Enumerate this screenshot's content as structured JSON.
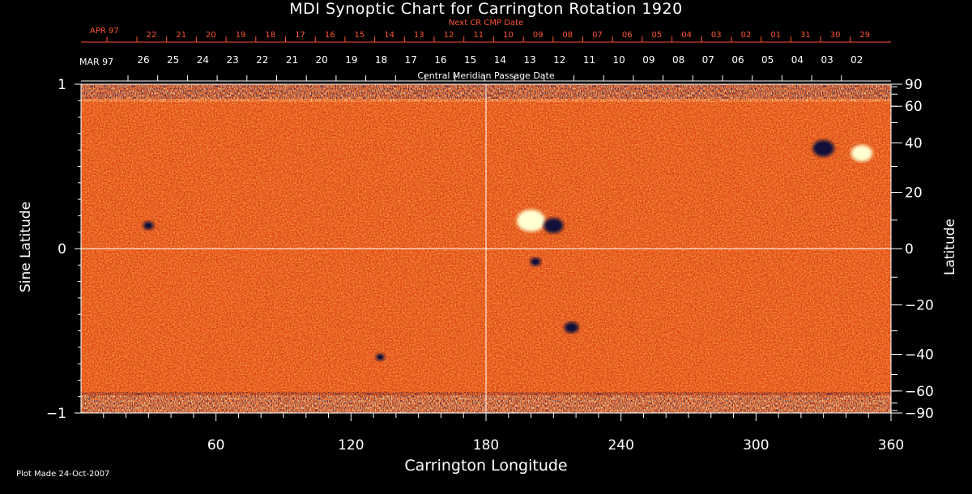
{
  "chart_data": {
    "type": "heatmap",
    "title": "MDI Synoptic Chart for Carrington Rotation 1920",
    "xlabel": "Carrington Longitude",
    "ylabel_left": "Sine Latitude",
    "ylabel_right": "Latitude",
    "xlim": [
      0,
      360
    ],
    "ylim_sine": [
      -1,
      1
    ],
    "x_ticks": [
      60,
      120,
      180,
      240,
      300,
      360
    ],
    "y_ticks_left": [
      "1",
      "0",
      "−1"
    ],
    "y_ticks_right": [
      {
        "label": "90",
        "lat": 90
      },
      {
        "label": "60",
        "lat": 60
      },
      {
        "label": "40",
        "lat": 40
      },
      {
        "label": "20",
        "lat": 20
      },
      {
        "label": "0",
        "lat": 0
      },
      {
        "label": "−20",
        "lat": -20
      },
      {
        "label": "−40",
        "lat": -40
      },
      {
        "label": "−60",
        "lat": -60
      },
      {
        "label": "−90",
        "lat": -90
      }
    ],
    "next_cr_label": "Next CR CMP Date",
    "next_month": "APR 97",
    "next_dates": [
      "22",
      "21",
      "20",
      "19",
      "18",
      "17",
      "16",
      "15",
      "14",
      "13",
      "12",
      "11",
      "10",
      "09",
      "08",
      "07",
      "06",
      "05",
      "04",
      "03",
      "02",
      "01",
      "31",
      "30",
      "29"
    ],
    "cmp_label": "Central Meridian Passage Date",
    "current_month": "MAR 97",
    "current_dates": [
      "26",
      "25",
      "24",
      "23",
      "22",
      "21",
      "20",
      "19",
      "18",
      "17",
      "16",
      "15",
      "14",
      "13",
      "12",
      "11",
      "10",
      "09",
      "08",
      "07",
      "06",
      "05",
      "04",
      "03",
      "02"
    ],
    "active_regions": [
      {
        "lon": 200,
        "sinlat": 0.17,
        "polarity": "positive",
        "size": 16
      },
      {
        "lon": 210,
        "sinlat": 0.14,
        "polarity": "negative",
        "size": 11
      },
      {
        "lon": 202,
        "sinlat": -0.08,
        "polarity": "negative",
        "size": 6
      },
      {
        "lon": 347,
        "sinlat": 0.58,
        "polarity": "positive",
        "size": 12
      },
      {
        "lon": 330,
        "sinlat": 0.61,
        "polarity": "negative",
        "size": 12
      },
      {
        "lon": 218,
        "sinlat": -0.48,
        "polarity": "negative",
        "size": 8
      },
      {
        "lon": 133,
        "sinlat": -0.66,
        "polarity": "negative",
        "size": 5
      },
      {
        "lon": 30,
        "sinlat": 0.14,
        "polarity": "negative",
        "size": 6
      }
    ],
    "colors": {
      "background_field": "#e8501e",
      "positive": "#ffffd0",
      "negative": "#10103a"
    }
  },
  "footer": "Plot Made 24-Oct-2007"
}
